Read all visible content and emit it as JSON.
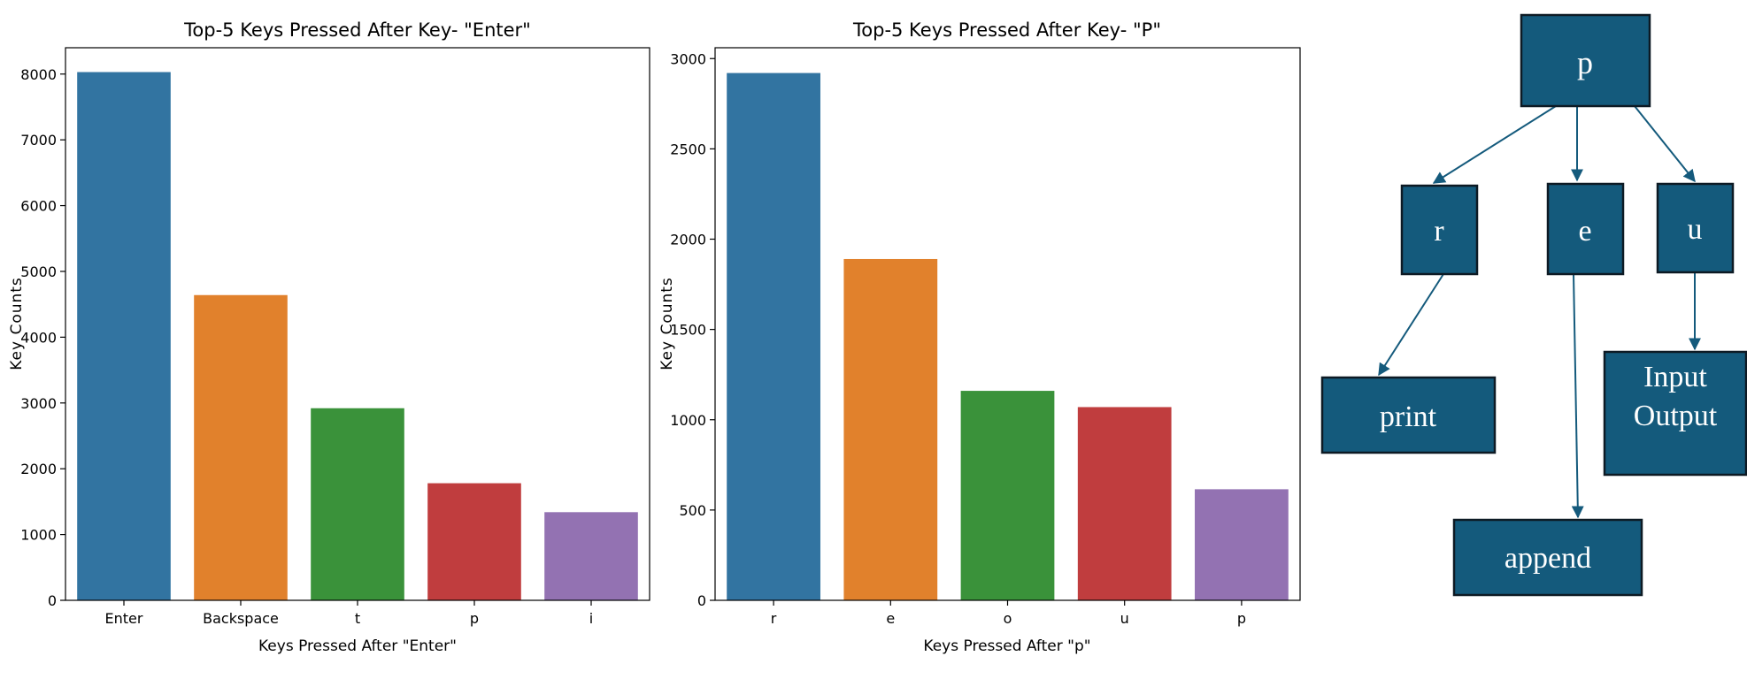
{
  "chart_data": [
    {
      "type": "bar",
      "title": "Top-5 Keys Pressed After Key- \"Enter\"",
      "xlabel": "Keys Pressed After \"Enter\"",
      "ylabel": "Key Counts",
      "categories": [
        "Enter",
        "Backspace",
        "t",
        "p",
        "i"
      ],
      "values": [
        8030,
        4640,
        2920,
        1780,
        1340
      ],
      "colors": [
        "#3274a1",
        "#e1812c",
        "#3a923a",
        "#c03d3e",
        "#9372b2"
      ],
      "ylim": [
        0,
        8400
      ],
      "yticks": [
        0,
        1000,
        2000,
        3000,
        4000,
        5000,
        6000,
        7000,
        8000
      ],
      "grid": false
    },
    {
      "type": "bar",
      "title": "Top-5 Keys Pressed After Key- \"P\"",
      "xlabel": "Keys Pressed After \"p\"",
      "ylabel": "Key Counts",
      "categories": [
        "r",
        "e",
        "o",
        "u",
        "p"
      ],
      "values": [
        2920,
        1890,
        1160,
        1070,
        615
      ],
      "colors": [
        "#3274a1",
        "#e1812c",
        "#3a923a",
        "#c03d3e",
        "#9372b2"
      ],
      "ylim": [
        0,
        3060
      ],
      "yticks": [
        0,
        500,
        1000,
        1500,
        2000,
        2500,
        3000
      ],
      "grid": false
    }
  ],
  "tree": {
    "node_color": "#145a7c",
    "nodes": {
      "root": "p",
      "r": "r",
      "e": "e",
      "u": "u",
      "print": "print",
      "append": "append",
      "io_line1": "Input",
      "io_line2": "Output"
    }
  }
}
